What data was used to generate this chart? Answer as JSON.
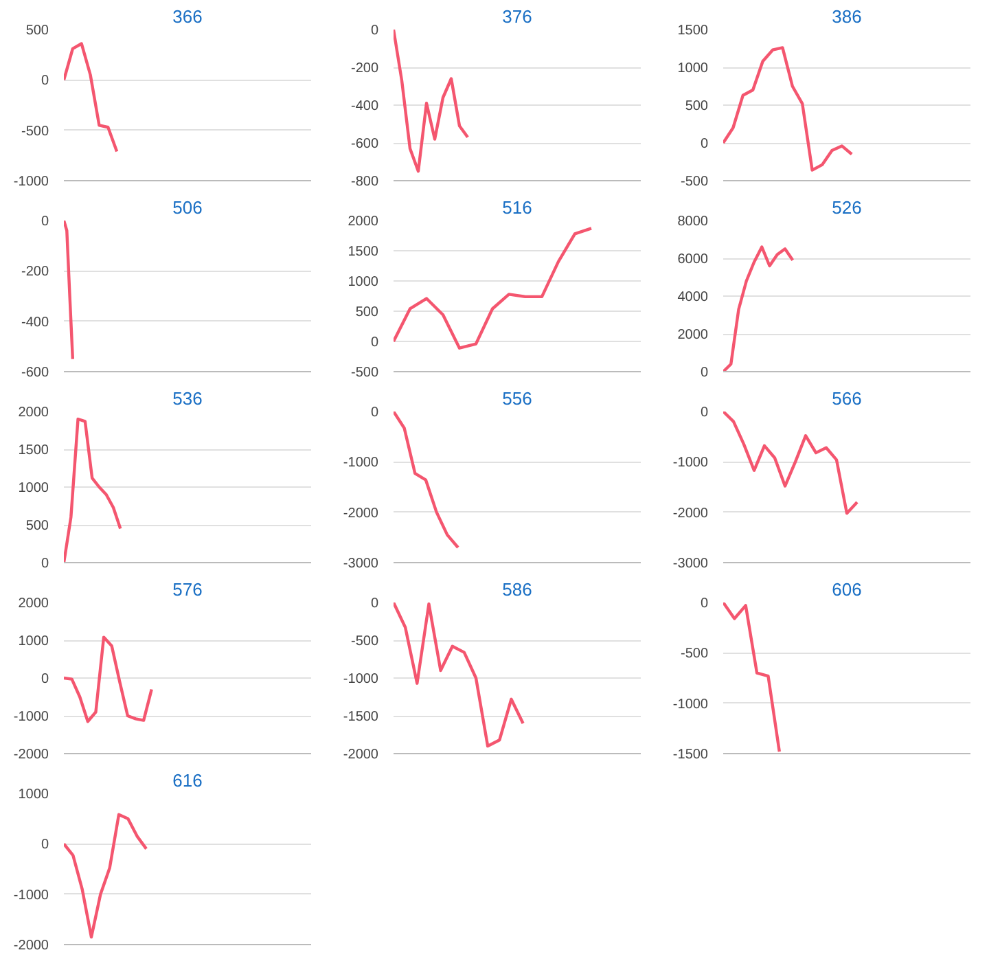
{
  "chart_data": [
    {
      "type": "line",
      "title": "366",
      "categories": [
        null,
        null,
        null,
        null,
        null,
        null,
        null,
        null,
        null,
        null,
        null,
        null,
        null,
        null,
        null,
        null,
        null,
        null,
        null,
        null,
        null,
        null,
        null,
        null,
        null,
        null,
        null,
        null,
        null
      ],
      "series": [
        {
          "color": "#f4566f",
          "values": [
            0,
            310,
            360,
            50,
            -450,
            -470,
            -710,
            null,
            null,
            null,
            null,
            null,
            null,
            null,
            null,
            null,
            null,
            null,
            null,
            null,
            null,
            null,
            null,
            null,
            null,
            null,
            null,
            null,
            null
          ]
        }
      ],
      "ylim": [
        -1000,
        500
      ],
      "yticks": [
        -1000,
        -500,
        0,
        500
      ],
      "grid": "y",
      "tick_labels": "y"
    },
    {
      "type": "line",
      "title": "376",
      "categories": [
        null,
        null,
        null,
        null,
        null,
        null,
        null,
        null,
        null,
        null,
        null,
        null,
        null,
        null,
        null,
        null,
        null,
        null,
        null,
        null,
        null,
        null,
        null,
        null,
        null,
        null,
        null,
        null,
        null,
        null,
        null
      ],
      "series": [
        {
          "color": "#f4566f",
          "values": [
            0,
            -270,
            -630,
            -750,
            -390,
            -580,
            -360,
            -260,
            -510,
            -570,
            null,
            null,
            null,
            null,
            null,
            null,
            null,
            null,
            null,
            null,
            null,
            null,
            null,
            null,
            null,
            null,
            null,
            null,
            null,
            null,
            null
          ]
        }
      ],
      "ylim": [
        -800,
        0
      ],
      "yticks": [
        -800,
        -600,
        -400,
        -200,
        0
      ],
      "grid": "y",
      "tick_labels": "y"
    },
    {
      "type": "line",
      "title": "386",
      "categories": [
        null,
        null,
        null,
        null,
        null,
        null,
        null,
        null,
        null,
        null,
        null,
        null,
        null,
        null,
        null,
        null,
        null,
        null,
        null,
        null,
        null,
        null,
        null,
        null,
        null,
        null
      ],
      "series": [
        {
          "color": "#f4566f",
          "values": [
            0,
            200,
            630,
            700,
            1080,
            1230,
            1260,
            750,
            520,
            -360,
            -290,
            -100,
            -40,
            -150,
            null,
            null,
            null,
            null,
            null,
            null,
            null,
            null,
            null,
            null,
            null,
            null
          ]
        }
      ],
      "ylim": [
        -500,
        1500
      ],
      "yticks": [
        -500,
        0,
        500,
        1000,
        1500
      ],
      "grid": "y",
      "tick_labels": "y"
    },
    {
      "type": "line",
      "title": "506",
      "categories": [
        null,
        null,
        null,
        null,
        null,
        null,
        null,
        null,
        null,
        null,
        null,
        null,
        null,
        null,
        null,
        null,
        null,
        null,
        null,
        null,
        null,
        null,
        null,
        null,
        null,
        null,
        null,
        null,
        null,
        null,
        null,
        null,
        null,
        null,
        null,
        null,
        null,
        null,
        null,
        null,
        null,
        null,
        null,
        null,
        null,
        null,
        null,
        null,
        null,
        null,
        null,
        null,
        null,
        null,
        null,
        null,
        null,
        null,
        null,
        null,
        null,
        null,
        null,
        null,
        null,
        null,
        null,
        null,
        null,
        null,
        null,
        null,
        null,
        null,
        null,
        null,
        null,
        null,
        null,
        null,
        null,
        null,
        null,
        null,
        null
      ],
      "series": [
        {
          "color": "#f4566f",
          "values": [
            0,
            -40,
            -300,
            -550,
            null,
            null,
            null,
            null,
            null,
            null,
            null,
            null,
            null,
            null,
            null,
            null,
            null,
            null,
            null,
            null,
            null,
            null,
            null,
            null,
            null,
            null,
            null,
            null,
            null,
            null,
            null,
            null,
            null,
            null,
            null,
            null,
            null,
            null,
            null,
            null,
            null,
            null,
            null,
            null,
            null,
            null,
            null,
            null,
            null,
            null,
            null,
            null,
            null,
            null,
            null,
            null,
            null,
            null,
            null,
            null,
            null,
            null,
            null,
            null,
            null,
            null,
            null,
            null,
            null,
            null,
            null,
            null,
            null,
            null,
            null,
            null,
            null,
            null,
            null,
            null,
            null,
            null,
            null,
            null,
            null
          ]
        }
      ],
      "ylim": [
        -600,
        0
      ],
      "yticks": [
        -600,
        -400,
        -200,
        0
      ],
      "grid": "y",
      "tick_labels": "y"
    },
    {
      "type": "line",
      "title": "516",
      "categories": [
        null,
        null,
        null,
        null,
        null,
        null,
        null,
        null,
        null,
        null,
        null,
        null,
        null,
        null,
        null,
        null
      ],
      "series": [
        {
          "color": "#f4566f",
          "values": [
            0,
            540,
            710,
            440,
            -110,
            -40,
            540,
            780,
            740,
            740,
            1320,
            1780,
            1870,
            null,
            null,
            null
          ]
        }
      ],
      "ylim": [
        -500,
        2000
      ],
      "yticks": [
        -500,
        0,
        500,
        1000,
        1500,
        2000
      ],
      "grid": "y",
      "tick_labels": "y"
    },
    {
      "type": "line",
      "title": "526",
      "categories": [
        null,
        null,
        null,
        null,
        null,
        null,
        null,
        null,
        null,
        null,
        null,
        null,
        null,
        null,
        null,
        null,
        null,
        null,
        null,
        null,
        null,
        null,
        null,
        null,
        null,
        null,
        null,
        null,
        null,
        null,
        null,
        null,
        null
      ],
      "series": [
        {
          "color": "#f4566f",
          "values": [
            0,
            400,
            3300,
            4800,
            5800,
            6600,
            5600,
            6200,
            6500,
            5900,
            null,
            null,
            null,
            null,
            null,
            null,
            null,
            null,
            null,
            null,
            null,
            null,
            null,
            null,
            null,
            null,
            null,
            null,
            null,
            null,
            null,
            null,
            null
          ]
        }
      ],
      "ylim": [
        0,
        8000
      ],
      "yticks": [
        0,
        2000,
        4000,
        6000,
        8000
      ],
      "grid": "y",
      "tick_labels": "y"
    },
    {
      "type": "line",
      "title": "536",
      "categories": [
        null,
        null,
        null,
        null,
        null,
        null,
        null,
        null,
        null,
        null,
        null,
        null,
        null,
        null,
        null,
        null,
        null,
        null,
        null,
        null,
        null,
        null,
        null,
        null,
        null,
        null,
        null,
        null,
        null,
        null,
        null,
        null,
        null,
        null,
        null,
        null
      ],
      "series": [
        {
          "color": "#f4566f",
          "values": [
            0,
            600,
            1900,
            1870,
            1120,
            1000,
            900,
            730,
            450,
            null,
            null,
            null,
            null,
            null,
            null,
            null,
            null,
            null,
            null,
            null,
            null,
            null,
            null,
            null,
            null,
            null,
            null,
            null,
            null,
            null,
            null,
            null,
            null,
            null,
            null,
            null
          ]
        }
      ],
      "ylim": [
        0,
        2000
      ],
      "yticks": [
        0,
        500,
        1000,
        1500,
        2000
      ],
      "grid": "y",
      "tick_labels": "y"
    },
    {
      "type": "line",
      "title": "556",
      "categories": [
        null,
        null,
        null,
        null,
        null,
        null,
        null,
        null,
        null,
        null,
        null,
        null,
        null,
        null,
        null,
        null,
        null,
        null,
        null,
        null,
        null,
        null,
        null,
        null
      ],
      "series": [
        {
          "color": "#f4566f",
          "values": [
            0,
            -330,
            -1230,
            -1360,
            -2000,
            -2450,
            -2700,
            null,
            null,
            null,
            null,
            null,
            null,
            null,
            null,
            null,
            null,
            null,
            null,
            null,
            null,
            null,
            null,
            null
          ]
        }
      ],
      "ylim": [
        -3000,
        0
      ],
      "yticks": [
        -3000,
        -2000,
        -1000,
        0
      ],
      "grid": "y",
      "tick_labels": "y"
    },
    {
      "type": "line",
      "title": "566",
      "categories": [
        null,
        null,
        null,
        null,
        null,
        null,
        null,
        null,
        null,
        null,
        null,
        null,
        null,
        null,
        null,
        null,
        null,
        null,
        null,
        null,
        null,
        null,
        null,
        null,
        null
      ],
      "series": [
        {
          "color": "#f4566f",
          "values": [
            0,
            -200,
            -650,
            -1170,
            -680,
            -920,
            -1480,
            -1000,
            -480,
            -820,
            -720,
            -960,
            -2020,
            -1800,
            null,
            null,
            null,
            null,
            null,
            null,
            null,
            null,
            null,
            null,
            null
          ]
        }
      ],
      "ylim": [
        -3000,
        0
      ],
      "yticks": [
        -3000,
        -2000,
        -1000,
        0
      ],
      "grid": "y",
      "tick_labels": "y"
    },
    {
      "type": "line",
      "title": "576",
      "categories": [
        null,
        null,
        null,
        null,
        null,
        null,
        null,
        null,
        null,
        null,
        null,
        null,
        null,
        null,
        null,
        null,
        null,
        null,
        null,
        null,
        null,
        null,
        null,
        null,
        null,
        null,
        null,
        null,
        null,
        null,
        null,
        null
      ],
      "series": [
        {
          "color": "#f4566f",
          "values": [
            0,
            -30,
            -500,
            -1150,
            -900,
            1080,
            850,
            -100,
            -1000,
            -1080,
            -1120,
            -300,
            null,
            null,
            null,
            null,
            null,
            null,
            null,
            null,
            null,
            null,
            null,
            null,
            null,
            null,
            null,
            null,
            null,
            null,
            null,
            null
          ]
        }
      ],
      "ylim": [
        -2000,
        2000
      ],
      "yticks": [
        -2000,
        -1000,
        0,
        1000,
        2000
      ],
      "grid": "y",
      "tick_labels": "y"
    },
    {
      "type": "line",
      "title": "586",
      "categories": [
        null,
        null,
        null,
        null,
        null,
        null,
        null,
        null,
        null,
        null,
        null,
        null,
        null,
        null,
        null,
        null,
        null,
        null,
        null,
        null,
        null,
        null
      ],
      "series": [
        {
          "color": "#f4566f",
          "values": [
            0,
            -330,
            -1070,
            -20,
            -900,
            -580,
            -660,
            -1000,
            -1900,
            -1820,
            -1280,
            -1600,
            null,
            null,
            null,
            null,
            null,
            null,
            null,
            null,
            null,
            null
          ]
        }
      ],
      "ylim": [
        -2000,
        0
      ],
      "yticks": [
        -2000,
        -1500,
        -1000,
        -500,
        0
      ],
      "grid": "y",
      "tick_labels": "y"
    },
    {
      "type": "line",
      "title": "606",
      "categories": [
        null,
        null,
        null,
        null,
        null,
        null,
        null,
        null,
        null,
        null,
        null,
        null,
        null,
        null,
        null,
        null,
        null,
        null,
        null,
        null,
        null,
        null,
        null
      ],
      "series": [
        {
          "color": "#f4566f",
          "values": [
            0,
            -160,
            -30,
            -700,
            -730,
            -1480,
            null,
            null,
            null,
            null,
            null,
            null,
            null,
            null,
            null,
            null,
            null,
            null,
            null,
            null,
            null,
            null,
            null
          ]
        }
      ],
      "ylim": [
        -1500,
        0
      ],
      "yticks": [
        -1500,
        -1000,
        -500,
        0
      ],
      "grid": "y",
      "tick_labels": "y"
    },
    {
      "type": "line",
      "title": "616",
      "categories": [
        null,
        null,
        null,
        null,
        null,
        null,
        null,
        null,
        null,
        null,
        null,
        null,
        null,
        null,
        null,
        null,
        null,
        null,
        null,
        null,
        null,
        null,
        null,
        null,
        null,
        null,
        null,
        null
      ],
      "series": [
        {
          "color": "#f4566f",
          "values": [
            0,
            -230,
            -900,
            -1850,
            -1000,
            -480,
            580,
            500,
            150,
            -100,
            null,
            null,
            null,
            null,
            null,
            null,
            null,
            null,
            null,
            null,
            null,
            null,
            null,
            null,
            null,
            null,
            null,
            null
          ]
        }
      ],
      "ylim": [
        -2000,
        1000
      ],
      "yticks": [
        -2000,
        -1000,
        0,
        1000
      ],
      "grid": "y",
      "tick_labels": "y"
    }
  ]
}
